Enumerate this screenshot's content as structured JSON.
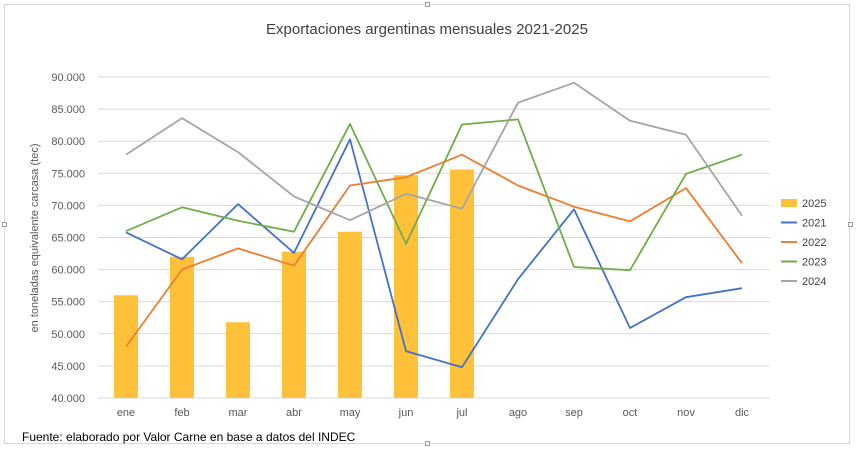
{
  "source_note": "Fuente: elaborado por  Valor Carne en base a datos del INDEC",
  "colors": {
    "2025": "#FFC03A",
    "2021": "#4472C4",
    "2022": "#ED7D31",
    "2023": "#70AD47",
    "2024": "#A5A5A5",
    "grid": "#D9D9D9",
    "axis_text": "#595959"
  },
  "chart_data": {
    "type": "bar+line",
    "title": "Exportaciones argentinas mensuales 2021-2025",
    "ylabel": "en toneladas equivalente carcasa (tec)",
    "xlabel": "",
    "ylim": [
      40000,
      90000
    ],
    "ytick_step": 5000,
    "ytick_labels": [
      "40.000",
      "45.000",
      "50.000",
      "55.000",
      "60.000",
      "65.000",
      "70.000",
      "75.000",
      "80.000",
      "85.000",
      "90.000"
    ],
    "grid": true,
    "legend_position": "right",
    "categories": [
      "ene",
      "feb",
      "mar",
      "abr",
      "may",
      "jun",
      "jul",
      "ago",
      "sep",
      "oct",
      "nov",
      "dic"
    ],
    "series": [
      {
        "name": "2025",
        "type": "bar",
        "values": [
          56000,
          62000,
          51800,
          62800,
          65900,
          74700,
          75600,
          null,
          null,
          null,
          null,
          null
        ]
      },
      {
        "name": "2021",
        "type": "line",
        "values": [
          65800,
          61600,
          70200,
          62600,
          80300,
          47300,
          44800,
          58500,
          69400,
          50900,
          55700,
          57100
        ]
      },
      {
        "name": "2022",
        "type": "line",
        "values": [
          48000,
          60000,
          63300,
          60600,
          73100,
          74400,
          77900,
          73100,
          69800,
          67500,
          72700,
          61000
        ]
      },
      {
        "name": "2023",
        "type": "line",
        "values": [
          66000,
          69700,
          67600,
          65900,
          82700,
          64000,
          82600,
          83400,
          60400,
          59900,
          74900,
          77900
        ]
      },
      {
        "name": "2024",
        "type": "line",
        "values": [
          77900,
          83600,
          78300,
          71400,
          67700,
          71800,
          69500,
          86000,
          89100,
          83200,
          81000,
          68400
        ]
      }
    ]
  }
}
